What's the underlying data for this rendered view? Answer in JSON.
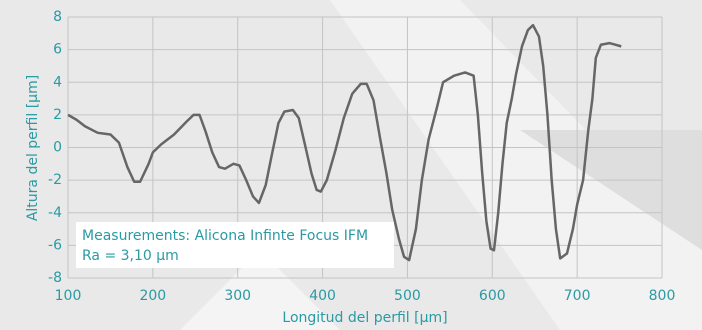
{
  "chart_data": {
    "type": "line",
    "xlabel": "Longitud del perfil [µm]",
    "ylabel": "Altura del perfil [µm]",
    "annotations": [
      "Measurements: Alicona Infinte Focus IFM",
      "Ra = 3,10 µm"
    ],
    "x": [
      100,
      110,
      120,
      135,
      150,
      160,
      170,
      178,
      185,
      195,
      200,
      210,
      225,
      240,
      248,
      255,
      262,
      270,
      278,
      285,
      295,
      302,
      310,
      318,
      325,
      333,
      340,
      348,
      355,
      365,
      372,
      380,
      387,
      393,
      398,
      405,
      415,
      425,
      435,
      445,
      452,
      460,
      468,
      475,
      482,
      490,
      496,
      502,
      510,
      517,
      525,
      535,
      542,
      555,
      568,
      578,
      583,
      588,
      593,
      598,
      602,
      607,
      612,
      617,
      623,
      628,
      635,
      642,
      648,
      655,
      660,
      665,
      670,
      675,
      680,
      688,
      695,
      700,
      707,
      713,
      718,
      722,
      728,
      738,
      745,
      752
    ],
    "series": [
      {
        "color": "#666666",
        "values": [
          2.0,
          1.7,
          1.3,
          0.9,
          0.8,
          0.3,
          -1.2,
          -2.1,
          -2.1,
          -1.0,
          -0.3,
          0.2,
          0.8,
          1.6,
          2.0,
          2.0,
          1.0,
          -0.3,
          -1.2,
          -1.3,
          -1.0,
          -1.1,
          -2.0,
          -3.0,
          -3.4,
          -2.3,
          -0.5,
          1.5,
          2.2,
          2.3,
          1.8,
          0,
          -1.6,
          -2.6,
          -2.7,
          -2.0,
          -0.2,
          1.8,
          3.3,
          3.9,
          3.9,
          2.9,
          0.5,
          -1.5,
          -3.8,
          -5.6,
          -6.7,
          -6.9,
          -5.0,
          -2.0,
          0.5,
          2.5,
          4.0,
          4.4,
          4.6,
          4.4,
          2.0,
          -1.5,
          -4.5,
          -6.2,
          -6.3,
          -4.0,
          -1.0,
          1.5,
          3.0,
          4.5,
          6.2,
          7.2,
          7.5,
          6.8,
          5.0,
          2.0,
          -2.0,
          -5.0,
          -6.8,
          -6.5,
          -5.0,
          -3.5,
          -2.0,
          1.0,
          3.0,
          5.5,
          6.3,
          6.4,
          6.3,
          6.2
        ]
      }
    ],
    "xlim": [
      100,
      800
    ],
    "ylim": [
      -8,
      8
    ],
    "xticks": [
      100,
      200,
      300,
      400,
      500,
      600,
      700,
      800
    ],
    "yticks": [
      -8,
      -6,
      -4,
      -2,
      0,
      2,
      4,
      6,
      8
    ],
    "grid": true
  }
}
